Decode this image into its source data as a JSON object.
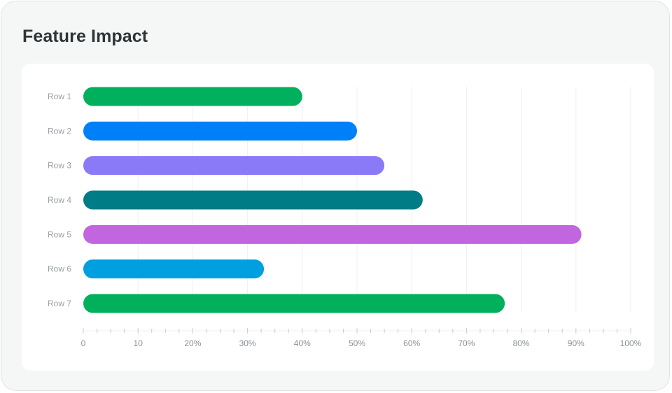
{
  "card": {
    "title": "Feature Impact"
  },
  "chart_data": {
    "type": "bar",
    "orientation": "horizontal",
    "title": "Feature Impact",
    "categories": [
      "Row 1",
      "Row 2",
      "Row 3",
      "Row 4",
      "Row 5",
      "Row 6",
      "Row 7"
    ],
    "values": [
      40,
      50,
      55,
      62,
      91,
      33,
      77
    ],
    "colors": [
      "#00b05c",
      "#0080f8",
      "#8b7af8",
      "#007c87",
      "#c266e0",
      "#009fe0",
      "#00b05c"
    ],
    "x_ticks": [
      0,
      10,
      20,
      30,
      40,
      50,
      60,
      70,
      80,
      90,
      100
    ],
    "x_tick_labels": [
      "0",
      "10",
      "20%",
      "30%",
      "40%",
      "50%",
      "60%",
      "70%",
      "80%",
      "90%",
      "100%"
    ],
    "xlim": [
      0,
      100
    ],
    "xlabel": "",
    "ylabel": "",
    "grid": true,
    "legend": "none",
    "gridline_color": "#eef0f2",
    "axis_color": "#c8ccd0"
  }
}
